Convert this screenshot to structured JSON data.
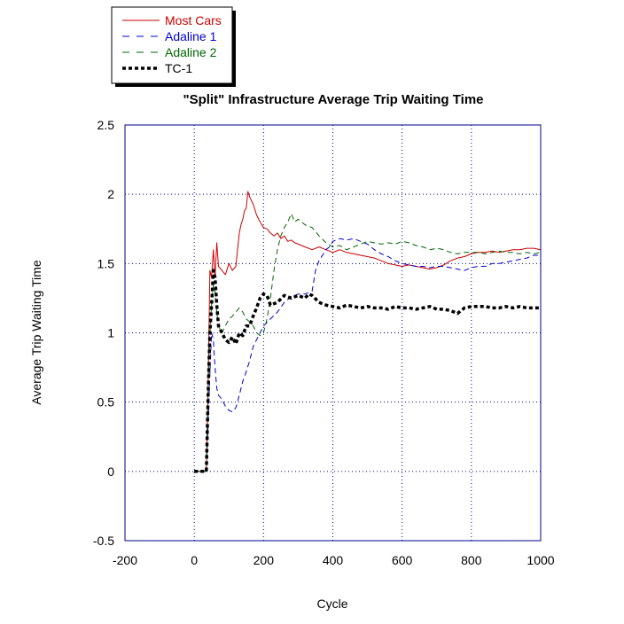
{
  "chart_data": {
    "type": "line",
    "title": "\"Split\" Infrastructure Average Trip Waiting Time",
    "xlabel": "Cycle",
    "ylabel": "Average Trip Waiting Time",
    "xlim": [
      -200,
      1000
    ],
    "ylim": [
      -0.5,
      2.5
    ],
    "xticks": [
      -200,
      0,
      200,
      400,
      600,
      800,
      1000
    ],
    "yticks": [
      -0.5,
      0,
      0.5,
      1,
      1.5,
      2,
      2.5
    ],
    "x_tick_labels": [
      "-200",
      "0",
      "200",
      "400",
      "600",
      "800",
      "1000"
    ],
    "y_tick_labels": [
      "-0.5",
      "0",
      "0.5",
      "1",
      "1.5",
      "2",
      "2.5"
    ],
    "grid": true,
    "legend_position": "top-left, outside plot",
    "colors": {
      "axis": "#00008b",
      "grid": "#00008b"
    },
    "series": [
      {
        "name": "Most Cars",
        "color": "#cc0000",
        "style": "solid",
        "points": [
          [
            0,
            0
          ],
          [
            35,
            0
          ],
          [
            40,
            0.6
          ],
          [
            45,
            1.45
          ],
          [
            50,
            1.4
          ],
          [
            55,
            1.6
          ],
          [
            60,
            1.4
          ],
          [
            65,
            1.65
          ],
          [
            70,
            1.48
          ],
          [
            80,
            1.45
          ],
          [
            90,
            1.42
          ],
          [
            100,
            1.5
          ],
          [
            110,
            1.45
          ],
          [
            120,
            1.48
          ],
          [
            125,
            1.6
          ],
          [
            130,
            1.72
          ],
          [
            135,
            1.78
          ],
          [
            140,
            1.82
          ],
          [
            145,
            1.88
          ],
          [
            150,
            1.9
          ],
          [
            155,
            2.02
          ],
          [
            160,
            1.98
          ],
          [
            170,
            1.93
          ],
          [
            180,
            1.85
          ],
          [
            190,
            1.8
          ],
          [
            200,
            1.76
          ],
          [
            210,
            1.75
          ],
          [
            220,
            1.72
          ],
          [
            230,
            1.7
          ],
          [
            240,
            1.72
          ],
          [
            250,
            1.68
          ],
          [
            260,
            1.7
          ],
          [
            270,
            1.66
          ],
          [
            280,
            1.67
          ],
          [
            290,
            1.65
          ],
          [
            300,
            1.64
          ],
          [
            320,
            1.62
          ],
          [
            340,
            1.6
          ],
          [
            360,
            1.62
          ],
          [
            380,
            1.6
          ],
          [
            400,
            1.58
          ],
          [
            420,
            1.6
          ],
          [
            440,
            1.58
          ],
          [
            460,
            1.57
          ],
          [
            480,
            1.56
          ],
          [
            500,
            1.55
          ],
          [
            520,
            1.54
          ],
          [
            540,
            1.52
          ],
          [
            560,
            1.5
          ],
          [
            580,
            1.49
          ],
          [
            600,
            1.48
          ],
          [
            620,
            1.49
          ],
          [
            640,
            1.48
          ],
          [
            660,
            1.47
          ],
          [
            680,
            1.46
          ],
          [
            700,
            1.47
          ],
          [
            720,
            1.49
          ],
          [
            740,
            1.52
          ],
          [
            760,
            1.54
          ],
          [
            780,
            1.55
          ],
          [
            800,
            1.57
          ],
          [
            820,
            1.58
          ],
          [
            840,
            1.58
          ],
          [
            860,
            1.59
          ],
          [
            880,
            1.58
          ],
          [
            900,
            1.59
          ],
          [
            920,
            1.6
          ],
          [
            940,
            1.6
          ],
          [
            960,
            1.61
          ],
          [
            980,
            1.61
          ],
          [
            1000,
            1.6
          ]
        ]
      },
      {
        "name": "Adaline 1",
        "color": "#0000cc",
        "style": "dashed",
        "points": [
          [
            0,
            0
          ],
          [
            35,
            0
          ],
          [
            40,
            0.35
          ],
          [
            45,
            0.7
          ],
          [
            50,
            1.0
          ],
          [
            55,
            0.95
          ],
          [
            60,
            0.75
          ],
          [
            65,
            0.6
          ],
          [
            70,
            0.55
          ],
          [
            80,
            0.52
          ],
          [
            90,
            0.47
          ],
          [
            100,
            0.44
          ],
          [
            110,
            0.43
          ],
          [
            120,
            0.46
          ],
          [
            130,
            0.55
          ],
          [
            140,
            0.65
          ],
          [
            150,
            0.72
          ],
          [
            160,
            0.8
          ],
          [
            170,
            0.9
          ],
          [
            180,
            0.95
          ],
          [
            190,
            1.0
          ],
          [
            200,
            1.05
          ],
          [
            220,
            1.1
          ],
          [
            240,
            1.15
          ],
          [
            260,
            1.22
          ],
          [
            280,
            1.26
          ],
          [
            300,
            1.28
          ],
          [
            320,
            1.28
          ],
          [
            340,
            1.3
          ],
          [
            350,
            1.45
          ],
          [
            360,
            1.52
          ],
          [
            370,
            1.56
          ],
          [
            380,
            1.6
          ],
          [
            390,
            1.62
          ],
          [
            400,
            1.66
          ],
          [
            420,
            1.68
          ],
          [
            440,
            1.67
          ],
          [
            460,
            1.68
          ],
          [
            480,
            1.66
          ],
          [
            500,
            1.64
          ],
          [
            520,
            1.6
          ],
          [
            540,
            1.57
          ],
          [
            560,
            1.55
          ],
          [
            580,
            1.52
          ],
          [
            600,
            1.5
          ],
          [
            620,
            1.49
          ],
          [
            640,
            1.48
          ],
          [
            660,
            1.48
          ],
          [
            680,
            1.47
          ],
          [
            700,
            1.48
          ],
          [
            720,
            1.48
          ],
          [
            740,
            1.47
          ],
          [
            760,
            1.46
          ],
          [
            780,
            1.45
          ],
          [
            800,
            1.47
          ],
          [
            820,
            1.48
          ],
          [
            840,
            1.48
          ],
          [
            860,
            1.5
          ],
          [
            880,
            1.5
          ],
          [
            900,
            1.51
          ],
          [
            920,
            1.52
          ],
          [
            940,
            1.53
          ],
          [
            960,
            1.54
          ],
          [
            980,
            1.56
          ],
          [
            1000,
            1.56
          ]
        ]
      },
      {
        "name": "Adaline 2",
        "color": "#006600",
        "style": "dashed",
        "points": [
          [
            0,
            0
          ],
          [
            35,
            0
          ],
          [
            40,
            0.6
          ],
          [
            45,
            1.0
          ],
          [
            50,
            1.2
          ],
          [
            55,
            1.35
          ],
          [
            60,
            1.3
          ],
          [
            65,
            1.15
          ],
          [
            70,
            1.05
          ],
          [
            80,
            1.0
          ],
          [
            90,
            1.05
          ],
          [
            100,
            1.1
          ],
          [
            110,
            1.12
          ],
          [
            120,
            1.15
          ],
          [
            130,
            1.18
          ],
          [
            140,
            1.15
          ],
          [
            150,
            1.1
          ],
          [
            160,
            1.08
          ],
          [
            170,
            1.05
          ],
          [
            180,
            1.0
          ],
          [
            190,
            0.98
          ],
          [
            200,
            1.0
          ],
          [
            210,
            1.1
          ],
          [
            220,
            1.25
          ],
          [
            230,
            1.45
          ],
          [
            240,
            1.6
          ],
          [
            250,
            1.7
          ],
          [
            260,
            1.76
          ],
          [
            270,
            1.8
          ],
          [
            280,
            1.86
          ],
          [
            290,
            1.8
          ],
          [
            300,
            1.82
          ],
          [
            320,
            1.78
          ],
          [
            340,
            1.76
          ],
          [
            360,
            1.7
          ],
          [
            380,
            1.65
          ],
          [
            400,
            1.62
          ],
          [
            420,
            1.63
          ],
          [
            440,
            1.6
          ],
          [
            460,
            1.62
          ],
          [
            480,
            1.64
          ],
          [
            500,
            1.66
          ],
          [
            520,
            1.65
          ],
          [
            540,
            1.64
          ],
          [
            560,
            1.65
          ],
          [
            580,
            1.64
          ],
          [
            600,
            1.66
          ],
          [
            620,
            1.65
          ],
          [
            640,
            1.63
          ],
          [
            660,
            1.62
          ],
          [
            680,
            1.6
          ],
          [
            700,
            1.61
          ],
          [
            720,
            1.6
          ],
          [
            740,
            1.58
          ],
          [
            760,
            1.57
          ],
          [
            780,
            1.58
          ],
          [
            800,
            1.58
          ],
          [
            820,
            1.58
          ],
          [
            840,
            1.57
          ],
          [
            860,
            1.58
          ],
          [
            880,
            1.59
          ],
          [
            900,
            1.58
          ],
          [
            920,
            1.58
          ],
          [
            940,
            1.57
          ],
          [
            960,
            1.58
          ],
          [
            980,
            1.57
          ],
          [
            1000,
            1.58
          ]
        ]
      },
      {
        "name": "TC-1",
        "color": "#000000",
        "style": "bold-dotted",
        "points": [
          [
            0,
            0
          ],
          [
            35,
            0
          ],
          [
            40,
            0.55
          ],
          [
            45,
            1.0
          ],
          [
            50,
            1.2
          ],
          [
            55,
            1.45
          ],
          [
            60,
            1.4
          ],
          [
            65,
            1.2
          ],
          [
            70,
            1.05
          ],
          [
            80,
            1.0
          ],
          [
            90,
            0.95
          ],
          [
            100,
            0.93
          ],
          [
            110,
            0.97
          ],
          [
            120,
            0.92
          ],
          [
            130,
            1.0
          ],
          [
            140,
            0.98
          ],
          [
            150,
            1.05
          ],
          [
            160,
            1.05
          ],
          [
            170,
            1.12
          ],
          [
            180,
            1.18
          ],
          [
            190,
            1.25
          ],
          [
            200,
            1.28
          ],
          [
            210,
            1.27
          ],
          [
            220,
            1.2
          ],
          [
            240,
            1.22
          ],
          [
            260,
            1.27
          ],
          [
            280,
            1.25
          ],
          [
            300,
            1.27
          ],
          [
            320,
            1.25
          ],
          [
            330,
            1.28
          ],
          [
            340,
            1.27
          ],
          [
            360,
            1.22
          ],
          [
            380,
            1.2
          ],
          [
            400,
            1.19
          ],
          [
            420,
            1.18
          ],
          [
            440,
            1.2
          ],
          [
            460,
            1.19
          ],
          [
            480,
            1.18
          ],
          [
            500,
            1.19
          ],
          [
            520,
            1.18
          ],
          [
            540,
            1.18
          ],
          [
            560,
            1.17
          ],
          [
            580,
            1.19
          ],
          [
            600,
            1.18
          ],
          [
            620,
            1.18
          ],
          [
            640,
            1.17
          ],
          [
            660,
            1.18
          ],
          [
            680,
            1.19
          ],
          [
            700,
            1.17
          ],
          [
            720,
            1.17
          ],
          [
            740,
            1.16
          ],
          [
            760,
            1.14
          ],
          [
            780,
            1.18
          ],
          [
            800,
            1.19
          ],
          [
            820,
            1.19
          ],
          [
            840,
            1.19
          ],
          [
            860,
            1.18
          ],
          [
            880,
            1.18
          ],
          [
            900,
            1.19
          ],
          [
            920,
            1.18
          ],
          [
            940,
            1.19
          ],
          [
            960,
            1.18
          ],
          [
            980,
            1.18
          ],
          [
            1000,
            1.18
          ]
        ]
      }
    ]
  }
}
